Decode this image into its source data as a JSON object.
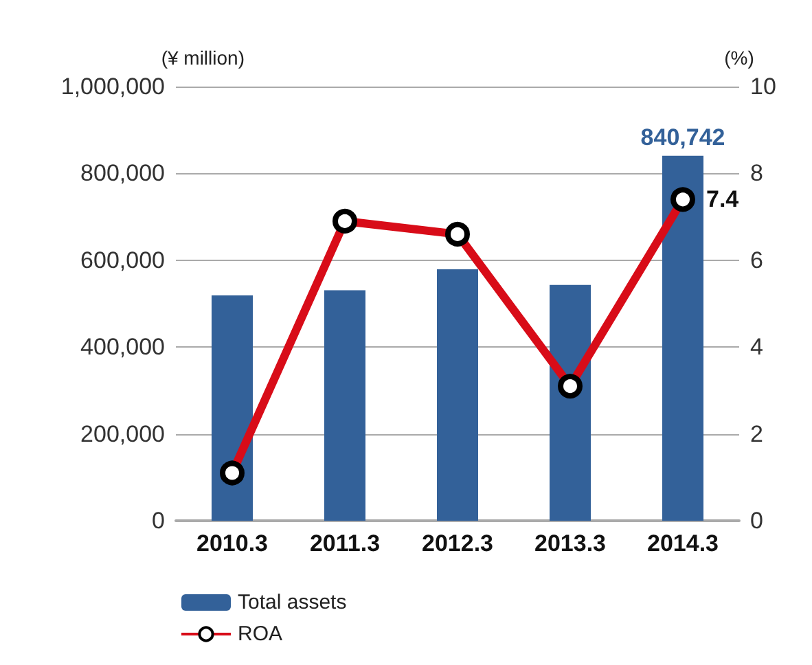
{
  "chart_data": {
    "type": "bar",
    "ylabel": "(¥ million)",
    "y2label": "(%)",
    "categories": [
      "2010.3",
      "2011.3",
      "2012.3",
      "2013.3",
      "2014.3"
    ],
    "series": [
      {
        "name": "Total assets",
        "color": "#336199",
        "values": [
          519000,
          531000,
          579000,
          543000,
          840742
        ],
        "value_labels": [
          null,
          null,
          null,
          null,
          "840,742"
        ]
      },
      {
        "name": "ROA",
        "type": "line",
        "axis": "y2",
        "color": "#d80c18",
        "marker": "circle",
        "values": [
          1.1,
          6.9,
          6.6,
          3.1,
          7.4
        ],
        "value_labels": [
          null,
          null,
          null,
          null,
          "7.4"
        ]
      }
    ],
    "ylim": [
      0,
      1000000
    ],
    "yticks": [
      0,
      {
        "value": 200000,
        "label": "200,000"
      },
      {
        "value": 400000,
        "label": "400,000"
      },
      {
        "value": 600000,
        "label": "600,000"
      },
      {
        "value": 800000,
        "label": "800,000"
      },
      {
        "value": 1000000,
        "label": "1,000,000"
      }
    ],
    "y2lim": [
      0,
      10
    ],
    "y2ticks": [
      0,
      2,
      4,
      6,
      8,
      10
    ],
    "grid": "y",
    "legend": "bottom left"
  }
}
